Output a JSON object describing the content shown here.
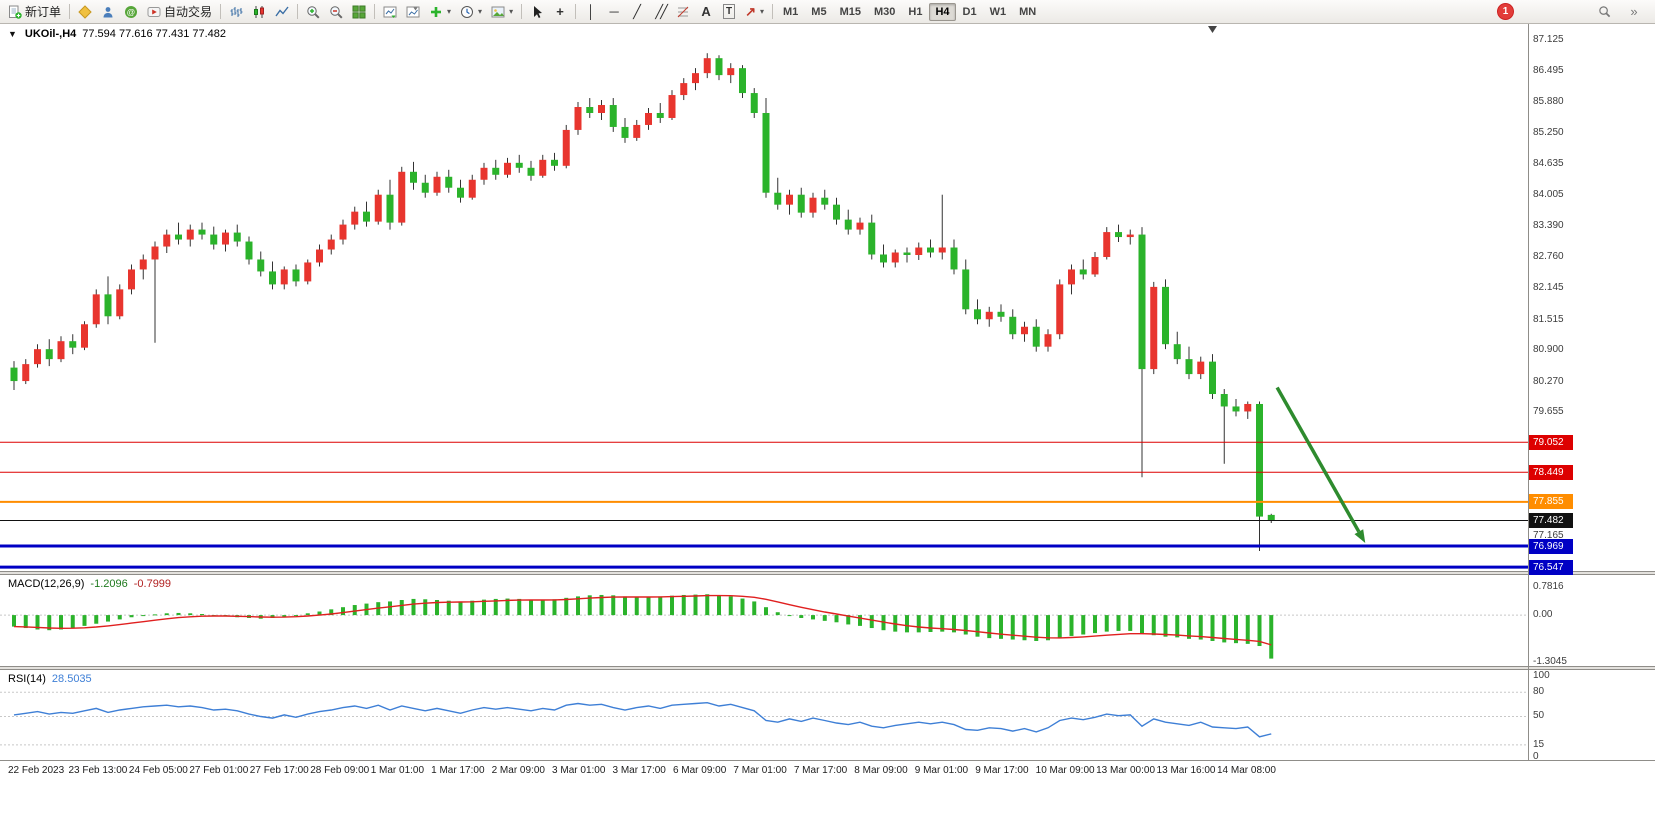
{
  "ui": {
    "symbol_title": "UKOil-,H4",
    "ohlc": "77.594 77.616 77.431 77.482",
    "one_click": "▼",
    "macd_title": "MACD(12,26,9)",
    "macd_v1": "-1.2096",
    "macd_v2": "-0.7999",
    "rsi_title": "RSI(14)",
    "rsi_value": "28.5035",
    "notification_count": "1",
    "toolbar": {
      "items": [
        {
          "name": "new-order-button",
          "icon": "new-order",
          "label": "新订单"
        },
        {
          "sep": true
        },
        {
          "name": "metaeditor-button",
          "icon": "metaeditor"
        },
        {
          "name": "market-watch-button",
          "icon": "market-watch"
        },
        {
          "name": "community-button",
          "icon": "community"
        },
        {
          "name": "autotrading-button",
          "icon": "autotrading",
          "label": "自动交易"
        },
        {
          "sep": true
        },
        {
          "name": "bar-chart-button",
          "icon": "bars"
        },
        {
          "name": "candlestick-chart-button",
          "icon": "candles"
        },
        {
          "name": "line-chart-button",
          "icon": "linechart"
        },
        {
          "sep": true
        },
        {
          "name": "zoom-in-button",
          "icon": "zoom-in"
        },
        {
          "name": "zoom-out-button",
          "icon": "zoom-out"
        },
        {
          "name": "tile-windows-button",
          "icon": "tile"
        },
        {
          "sep": true
        },
        {
          "name": "auto-scroll-button",
          "icon": "autoscroll"
        },
        {
          "name": "chart-shift-button",
          "icon": "chartshift"
        },
        {
          "name": "indicators-button",
          "icon": "indicators",
          "caret": true
        },
        {
          "name": "periods-button",
          "icon": "periods",
          "caret": true
        },
        {
          "name": "templates-button",
          "icon": "templates",
          "caret": true
        },
        {
          "sep": true
        },
        {
          "name": "cursor-button",
          "icon": "cursor"
        },
        {
          "name": "crosshair-button",
          "icon": "crosshair"
        },
        {
          "sep": true
        },
        {
          "name": "vertical-line-button",
          "icon": "vline"
        },
        {
          "name": "horizontal-line-button",
          "icon": "hline"
        },
        {
          "name": "trendline-button",
          "icon": "trendline"
        },
        {
          "name": "channel-button",
          "icon": "channel"
        },
        {
          "name": "fibonacci-button",
          "icon": "fibonacci"
        },
        {
          "name": "text-button",
          "icon": "text"
        },
        {
          "name": "text-label-button",
          "icon": "textlabel"
        },
        {
          "name": "arrows-button",
          "icon": "arrowobj",
          "caret": true
        },
        {
          "sep": true
        }
      ],
      "timeframes": [
        "M1",
        "M5",
        "M15",
        "M30",
        "H1",
        "H4",
        "D1",
        "W1",
        "MN"
      ],
      "active_timeframe": "H4",
      "right_items": [
        {
          "name": "notification-badge",
          "badge": true
        },
        {
          "name": "search-button",
          "icon": "magnifier"
        },
        {
          "name": "toolbar-overflow-button",
          "icon": "chevrons"
        }
      ]
    }
  },
  "chart_data": {
    "type": "candlestick",
    "symbol": "UKOil-",
    "timeframe": "H4",
    "current_ohlc": {
      "open": 77.594,
      "high": 77.616,
      "low": 77.431,
      "close": 77.482
    },
    "color_convention": "red=up, green=down",
    "colors": {
      "up": "#e8352e",
      "down": "#2bb32b",
      "wick": "#333333",
      "macd_hist": "#2bb32b",
      "macd_signal": "#e02020",
      "rsi_line": "#3e7fd6"
    },
    "price_axis_range": [
      76.547,
      87.125
    ],
    "price_axis_ticks": [
      87.125,
      86.495,
      85.88,
      85.25,
      84.635,
      84.005,
      83.39,
      82.76,
      82.145,
      81.515,
      80.9,
      80.27,
      79.655,
      77.165
    ],
    "price_lines": [
      {
        "name": "resistance-line-1",
        "price": 79.052,
        "color": "#dd0000",
        "width": 1
      },
      {
        "name": "resistance-line-2",
        "price": 78.449,
        "color": "#dd0000",
        "width": 1
      },
      {
        "name": "support-line-orange",
        "price": 77.855,
        "color": "#ff8d00",
        "width": 2
      },
      {
        "name": "current-price-line",
        "price": 77.482,
        "color": "#111111",
        "width": 1
      },
      {
        "name": "support-line-blue-1",
        "price": 76.969,
        "color": "#0000c4",
        "width": 3
      },
      {
        "name": "support-line-blue-2",
        "price": 76.547,
        "color": "#0000c4",
        "width": 3
      }
    ],
    "arrow_annotation": {
      "from_bar": 107.5,
      "from_price": 80.15,
      "to_bar": 115,
      "to_price": 77.03,
      "color": "#2e8b2e"
    },
    "shift_marker_bar": 102,
    "time_labels": [
      "22 Feb 2023",
      "23 Feb 13:00",
      "24 Feb 05:00",
      "27 Feb 01:00",
      "27 Feb 17:00",
      "28 Feb 09:00",
      "1 Mar 01:00",
      "1 Mar 17:00",
      "2 Mar 09:00",
      "3 Mar 01:00",
      "3 Mar 17:00",
      "6 Mar 09:00",
      "7 Mar 01:00",
      "7 Mar 17:00",
      "8 Mar 09:00",
      "9 Mar 01:00",
      "9 Mar 17:00",
      "10 Mar 09:00",
      "13 Mar 00:00",
      "13 Mar 16:00",
      "14 Mar 08:00"
    ],
    "candles_ohlc": [
      [
        80.55,
        80.68,
        80.1,
        80.28
      ],
      [
        80.28,
        80.72,
        80.22,
        80.62
      ],
      [
        80.62,
        81.02,
        80.55,
        80.92
      ],
      [
        80.92,
        81.12,
        80.58,
        80.72
      ],
      [
        80.72,
        81.18,
        80.66,
        81.08
      ],
      [
        81.08,
        81.22,
        80.82,
        80.95
      ],
      [
        80.95,
        81.48,
        80.9,
        81.42
      ],
      [
        81.42,
        82.12,
        81.35,
        82.02
      ],
      [
        82.02,
        82.38,
        81.42,
        81.58
      ],
      [
        81.58,
        82.22,
        81.52,
        82.12
      ],
      [
        82.12,
        82.62,
        82.02,
        82.52
      ],
      [
        82.52,
        82.82,
        82.32,
        82.72
      ],
      [
        82.72,
        83.08,
        81.05,
        82.98
      ],
      [
        82.98,
        83.32,
        82.85,
        83.22
      ],
      [
        83.22,
        83.46,
        83.02,
        83.12
      ],
      [
        83.12,
        83.42,
        82.98,
        83.32
      ],
      [
        83.32,
        83.46,
        83.12,
        83.22
      ],
      [
        83.22,
        83.38,
        82.92,
        83.02
      ],
      [
        83.02,
        83.32,
        82.88,
        83.26
      ],
      [
        83.26,
        83.42,
        82.98,
        83.08
      ],
      [
        83.08,
        83.18,
        82.62,
        82.72
      ],
      [
        82.72,
        82.88,
        82.38,
        82.48
      ],
      [
        82.48,
        82.68,
        82.12,
        82.22
      ],
      [
        82.22,
        82.58,
        82.12,
        82.52
      ],
      [
        82.52,
        82.62,
        82.18,
        82.28
      ],
      [
        82.28,
        82.72,
        82.22,
        82.66
      ],
      [
        82.66,
        83.02,
        82.58,
        82.92
      ],
      [
        82.92,
        83.22,
        82.82,
        83.12
      ],
      [
        83.12,
        83.52,
        83.02,
        83.42
      ],
      [
        83.42,
        83.78,
        83.32,
        83.68
      ],
      [
        83.68,
        83.88,
        83.38,
        83.48
      ],
      [
        83.48,
        84.12,
        83.42,
        84.02
      ],
      [
        84.02,
        84.32,
        83.32,
        83.46
      ],
      [
        83.46,
        84.58,
        83.4,
        84.48
      ],
      [
        84.48,
        84.68,
        84.12,
        84.26
      ],
      [
        84.26,
        84.42,
        83.96,
        84.06
      ],
      [
        84.06,
        84.48,
        84.0,
        84.38
      ],
      [
        84.38,
        84.52,
        84.06,
        84.16
      ],
      [
        84.16,
        84.32,
        83.86,
        83.96
      ],
      [
        83.96,
        84.42,
        83.92,
        84.32
      ],
      [
        84.32,
        84.66,
        84.22,
        84.56
      ],
      [
        84.56,
        84.72,
        84.32,
        84.42
      ],
      [
        84.42,
        84.76,
        84.36,
        84.66
      ],
      [
        84.66,
        84.82,
        84.46,
        84.56
      ],
      [
        84.56,
        84.7,
        84.3,
        84.4
      ],
      [
        84.4,
        84.82,
        84.36,
        84.72
      ],
      [
        84.72,
        84.86,
        84.5,
        84.6
      ],
      [
        84.6,
        85.42,
        84.55,
        85.32
      ],
      [
        85.32,
        85.88,
        85.22,
        85.78
      ],
      [
        85.78,
        85.96,
        85.56,
        85.66
      ],
      [
        85.66,
        85.92,
        85.52,
        85.82
      ],
      [
        85.82,
        85.96,
        85.28,
        85.38
      ],
      [
        85.38,
        85.56,
        85.06,
        85.16
      ],
      [
        85.16,
        85.52,
        85.1,
        85.42
      ],
      [
        85.42,
        85.76,
        85.32,
        85.66
      ],
      [
        85.66,
        85.86,
        85.46,
        85.56
      ],
      [
        85.56,
        86.12,
        85.52,
        86.02
      ],
      [
        86.02,
        86.36,
        85.92,
        86.26
      ],
      [
        86.26,
        86.56,
        86.12,
        86.46
      ],
      [
        86.46,
        86.86,
        86.36,
        86.76
      ],
      [
        86.76,
        86.82,
        86.32,
        86.42
      ],
      [
        86.42,
        86.66,
        86.26,
        86.56
      ],
      [
        86.56,
        86.62,
        85.96,
        86.06
      ],
      [
        86.06,
        86.16,
        85.56,
        85.66
      ],
      [
        85.66,
        85.96,
        83.96,
        84.06
      ],
      [
        84.06,
        84.36,
        83.72,
        83.82
      ],
      [
        83.82,
        84.12,
        83.62,
        84.02
      ],
      [
        84.02,
        84.16,
        83.56,
        83.66
      ],
      [
        83.66,
        84.06,
        83.56,
        83.96
      ],
      [
        83.96,
        84.12,
        83.72,
        83.82
      ],
      [
        83.82,
        83.96,
        83.42,
        83.52
      ],
      [
        83.52,
        83.72,
        83.22,
        83.32
      ],
      [
        83.32,
        83.56,
        83.22,
        83.46
      ],
      [
        83.46,
        83.62,
        82.72,
        82.82
      ],
      [
        82.82,
        83.02,
        82.56,
        82.66
      ],
      [
        82.66,
        82.92,
        82.56,
        82.86
      ],
      [
        82.86,
        82.96,
        82.66,
        82.81
      ],
      [
        82.81,
        83.06,
        82.71,
        82.96
      ],
      [
        82.96,
        83.12,
        82.76,
        82.86
      ],
      [
        82.86,
        84.02,
        82.72,
        82.96
      ],
      [
        82.96,
        83.12,
        82.42,
        82.52
      ],
      [
        82.52,
        82.72,
        81.62,
        81.72
      ],
      [
        81.72,
        81.92,
        81.42,
        81.52
      ],
      [
        81.52,
        81.77,
        81.37,
        81.67
      ],
      [
        81.67,
        81.82,
        81.47,
        81.57
      ],
      [
        81.57,
        81.72,
        81.12,
        81.22
      ],
      [
        81.22,
        81.47,
        81.07,
        81.37
      ],
      [
        81.37,
        81.52,
        80.87,
        80.97
      ],
      [
        80.97,
        81.32,
        80.87,
        81.22
      ],
      [
        81.22,
        82.32,
        81.12,
        82.22
      ],
      [
        82.22,
        82.62,
        82.02,
        82.52
      ],
      [
        82.52,
        82.72,
        82.32,
        82.42
      ],
      [
        82.42,
        82.87,
        82.37,
        82.77
      ],
      [
        82.77,
        83.37,
        82.72,
        83.27
      ],
      [
        83.27,
        83.42,
        83.07,
        83.17
      ],
      [
        83.17,
        83.32,
        83.02,
        83.22
      ],
      [
        83.22,
        83.37,
        78.35,
        80.52
      ],
      [
        80.52,
        82.27,
        80.42,
        82.17
      ],
      [
        82.17,
        82.32,
        80.92,
        81.02
      ],
      [
        81.02,
        81.27,
        80.62,
        80.72
      ],
      [
        80.72,
        80.97,
        80.32,
        80.42
      ],
      [
        80.42,
        80.77,
        80.32,
        80.67
      ],
      [
        80.67,
        80.82,
        79.92,
        80.02
      ],
      [
        80.02,
        80.12,
        78.62,
        79.77
      ],
      [
        79.77,
        79.92,
        79.57,
        79.67
      ],
      [
        79.67,
        79.87,
        79.52,
        79.82
      ],
      [
        79.82,
        79.87,
        76.87,
        77.56
      ],
      [
        77.594,
        77.616,
        77.431,
        77.482
      ]
    ],
    "macd": {
      "params": "12,26,9",
      "last_main": -1.2096,
      "last_signal": -0.7999,
      "ylim": [
        -1.3045,
        0.7816
      ],
      "axis_labels": [
        {
          "text": "0.7816",
          "value": 0.7816
        },
        {
          "text": "0.00",
          "value": 0
        },
        {
          "text": "-1.3045",
          "value": -1.3045
        }
      ],
      "histogram": [
        -0.32,
        -0.36,
        -0.4,
        -0.42,
        -0.4,
        -0.36,
        -0.3,
        -0.24,
        -0.18,
        -0.12,
        -0.06,
        -0.02,
        0.02,
        0.05,
        0.06,
        0.05,
        0.03,
        0.0,
        -0.03,
        -0.06,
        -0.08,
        -0.1,
        -0.08,
        -0.04,
        0.0,
        0.05,
        0.1,
        0.16,
        0.22,
        0.28,
        0.32,
        0.36,
        0.38,
        0.42,
        0.45,
        0.44,
        0.42,
        0.4,
        0.38,
        0.4,
        0.43,
        0.45,
        0.46,
        0.45,
        0.43,
        0.42,
        0.44,
        0.48,
        0.52,
        0.55,
        0.56,
        0.55,
        0.52,
        0.5,
        0.5,
        0.52,
        0.54,
        0.56,
        0.57,
        0.58,
        0.55,
        0.52,
        0.46,
        0.38,
        0.22,
        0.08,
        -0.02,
        -0.08,
        -0.12,
        -0.16,
        -0.2,
        -0.26,
        -0.3,
        -0.36,
        -0.42,
        -0.46,
        -0.48,
        -0.48,
        -0.47,
        -0.46,
        -0.48,
        -0.54,
        -0.6,
        -0.64,
        -0.66,
        -0.68,
        -0.7,
        -0.72,
        -0.7,
        -0.64,
        -0.58,
        -0.54,
        -0.5,
        -0.46,
        -0.44,
        -0.44,
        -0.52,
        -0.56,
        -0.6,
        -0.62,
        -0.66,
        -0.68,
        -0.72,
        -0.76,
        -0.78,
        -0.8,
        -0.86,
        -1.21
      ]
    },
    "rsi": {
      "period": 14,
      "last": 28.5035,
      "ylim": [
        0,
        100
      ],
      "levels": [
        80,
        50,
        15
      ],
      "axis_labels": [
        {
          "text": "100",
          "value": 100
        },
        {
          "text": "80",
          "value": 80
        },
        {
          "text": "50",
          "value": 50
        },
        {
          "text": "15",
          "value": 15
        },
        {
          "text": "0",
          "value": 0
        }
      ],
      "values": [
        52,
        54,
        56,
        53,
        55,
        54,
        57,
        60,
        55,
        58,
        60,
        62,
        63,
        64,
        62,
        63,
        61,
        58,
        59,
        57,
        53,
        50,
        48,
        52,
        49,
        53,
        56,
        58,
        61,
        63,
        60,
        64,
        58,
        63,
        60,
        57,
        60,
        57,
        54,
        58,
        61,
        59,
        61,
        59,
        57,
        60,
        58,
        64,
        66,
        64,
        65,
        61,
        58,
        61,
        63,
        60,
        64,
        65,
        66,
        67,
        63,
        65,
        61,
        57,
        45,
        43,
        47,
        44,
        48,
        45,
        42,
        40,
        43,
        38,
        36,
        39,
        41,
        43,
        41,
        43,
        40,
        34,
        33,
        36,
        35,
        32,
        35,
        31,
        36,
        45,
        48,
        46,
        49,
        53,
        51,
        52,
        38,
        47,
        43,
        41,
        39,
        43,
        37,
        36,
        35,
        37,
        25,
        28.5
      ]
    }
  }
}
